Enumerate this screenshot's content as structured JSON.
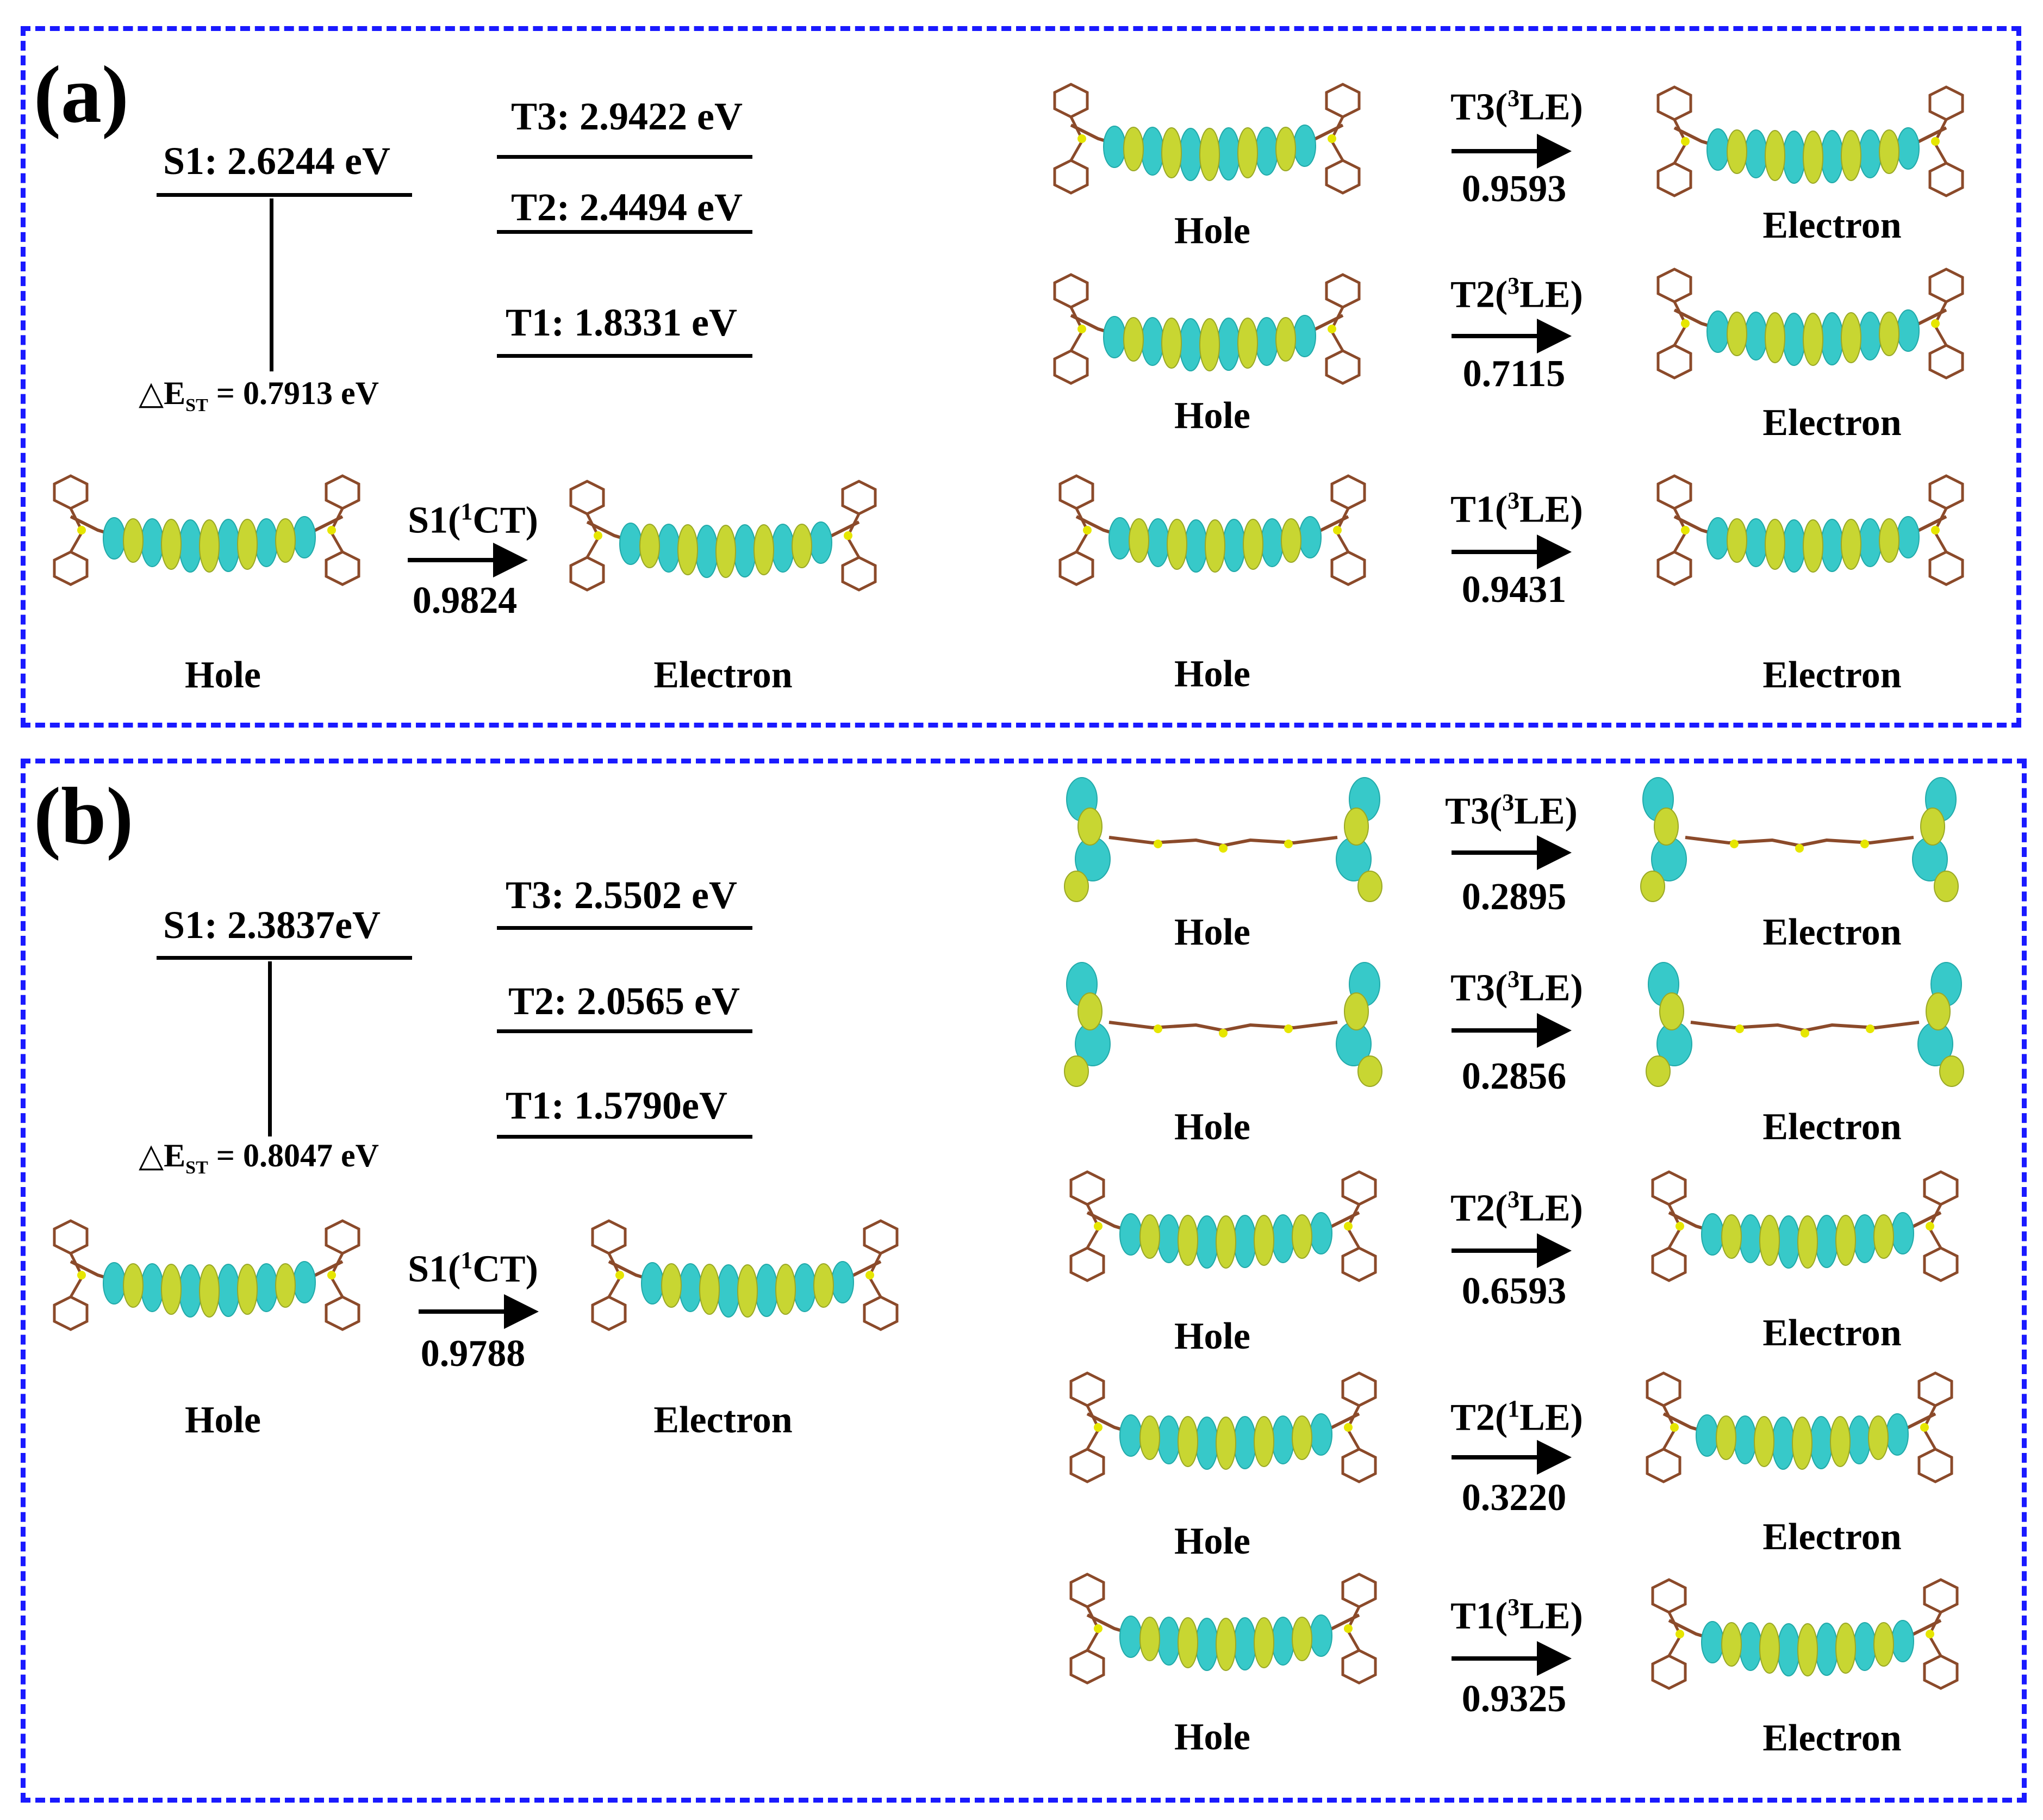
{
  "colors": {
    "frame": "#1a1aff",
    "orbital_pos": "#c8d632",
    "orbital_neg": "#37c9c9",
    "carbon": "#8b4a2a",
    "sulfur": "#e6e600"
  },
  "panel_a": {
    "letter": "(a)",
    "levels": {
      "s1": "S1: 2.6244 eV",
      "t3": "T3: 2.9422 eV",
      "t2": "T2: 2.4494 eV",
      "t1": "T1: 1.8331 eV"
    },
    "delta_prefix": "△E",
    "delta_sub": "ST",
    "delta_value": " = 0.7913 eV",
    "s1_transition": {
      "state": "S1(",
      "sup": "1",
      "type": "CT)",
      "value": "0.9824",
      "hole": "Hole",
      "electron": "Electron"
    },
    "transitions": [
      {
        "state": "T3(",
        "sup": "3",
        "type": "LE)",
        "value": "0.9593",
        "hole": "Hole",
        "electron": "Electron"
      },
      {
        "state": "T2(",
        "sup": "3",
        "type": "LE)",
        "value": "0.7115",
        "hole": "Hole",
        "electron": "Electron"
      },
      {
        "state": "T1(",
        "sup": "3",
        "type": "LE)",
        "value": "0.9431",
        "hole": "Hole",
        "electron": "Electron"
      }
    ]
  },
  "panel_b": {
    "letter": "(b)",
    "levels": {
      "s1": "S1: 2.3837eV",
      "t3": "T3: 2.5502 eV",
      "t2": "T2: 2.0565 eV",
      "t1": "T1: 1.5790eV"
    },
    "delta_prefix": "△E",
    "delta_sub": "ST",
    "delta_value": " = 0.8047 eV",
    "s1_transition": {
      "state": "S1(",
      "sup": "1",
      "type": "CT)",
      "value": "0.9788",
      "hole": "Hole",
      "electron": "Electron"
    },
    "transitions": [
      {
        "state": "T3(",
        "sup": "3",
        "type": "LE)",
        "value": "0.2895",
        "hole": "Hole",
        "electron": "Electron"
      },
      {
        "state": "T3(",
        "sup": "3",
        "type": "LE)",
        "value": "0.2856",
        "hole": "Hole",
        "electron": "Electron"
      },
      {
        "state": "T2(",
        "sup": "3",
        "type": "LE)",
        "value": "0.6593",
        "hole": "Hole",
        "electron": "Electron"
      },
      {
        "state": "T2(",
        "sup": "1",
        "type": "LE)",
        "value": "0.3220",
        "hole": "Hole",
        "electron": "Electron"
      },
      {
        "state": "T1(",
        "sup": "3",
        "type": "LE)",
        "value": "0.9325",
        "hole": "Hole",
        "electron": "Electron"
      }
    ]
  }
}
